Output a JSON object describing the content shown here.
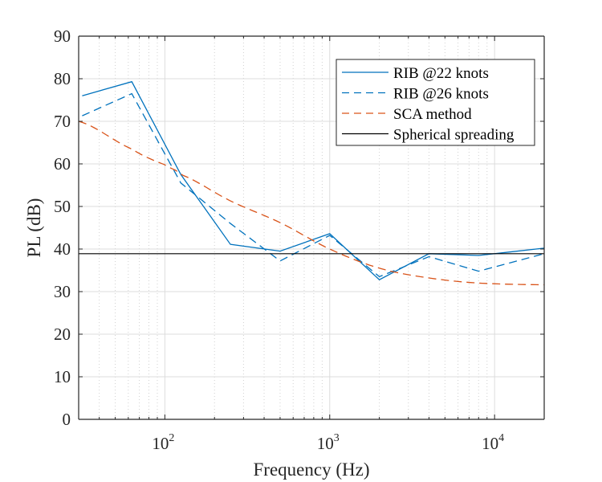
{
  "chart_data": {
    "type": "line",
    "title": "",
    "xlabel": "Frequency (Hz)",
    "ylabel": "PL (dB)",
    "xscale": "log",
    "xlim": [
      30,
      20000
    ],
    "ylim": [
      0,
      90
    ],
    "yticks": [
      0,
      10,
      20,
      30,
      40,
      50,
      60,
      70,
      80,
      90
    ],
    "xticks": [
      {
        "value": 100,
        "base": "10",
        "exp": "2"
      },
      {
        "value": 1000,
        "base": "10",
        "exp": "3"
      },
      {
        "value": 10000,
        "base": "10",
        "exp": "4"
      }
    ],
    "grid": true,
    "minor_grid": true,
    "legend_position": "top-right",
    "series": [
      {
        "name": "RIB @22 knots",
        "style": "solid",
        "color": "#0072BD",
        "x": [
          31.5,
          63,
          125,
          250,
          500,
          1000,
          2000,
          4000,
          8000,
          20000
        ],
        "y": [
          76.0,
          79.3,
          57.5,
          41.1,
          39.5,
          43.6,
          32.8,
          38.9,
          38.5,
          40.2
        ]
      },
      {
        "name": "RIB @26 knots",
        "style": "dashed",
        "color": "#0072BD",
        "x": [
          31.5,
          63,
          125,
          250,
          500,
          1000,
          2000,
          4000,
          8000,
          20000
        ],
        "y": [
          71.3,
          76.5,
          55.5,
          46.0,
          37.2,
          43.2,
          33.5,
          38.2,
          34.8,
          38.9
        ]
      },
      {
        "name": "SCA method",
        "style": "dashed",
        "color": "#D95319",
        "x": [
          30,
          63,
          100,
          125,
          250,
          500,
          1000,
          2000,
          4000,
          8000,
          20000
        ],
        "y": [
          70.0,
          63.5,
          59.8,
          57.5,
          51.3,
          46.2,
          40.0,
          35.5,
          33.2,
          32.0,
          31.6
        ]
      },
      {
        "name": "Spherical spreading",
        "style": "solid",
        "color": "#000000",
        "x": [
          30,
          20000
        ],
        "y": [
          38.9,
          38.9
        ]
      }
    ]
  }
}
